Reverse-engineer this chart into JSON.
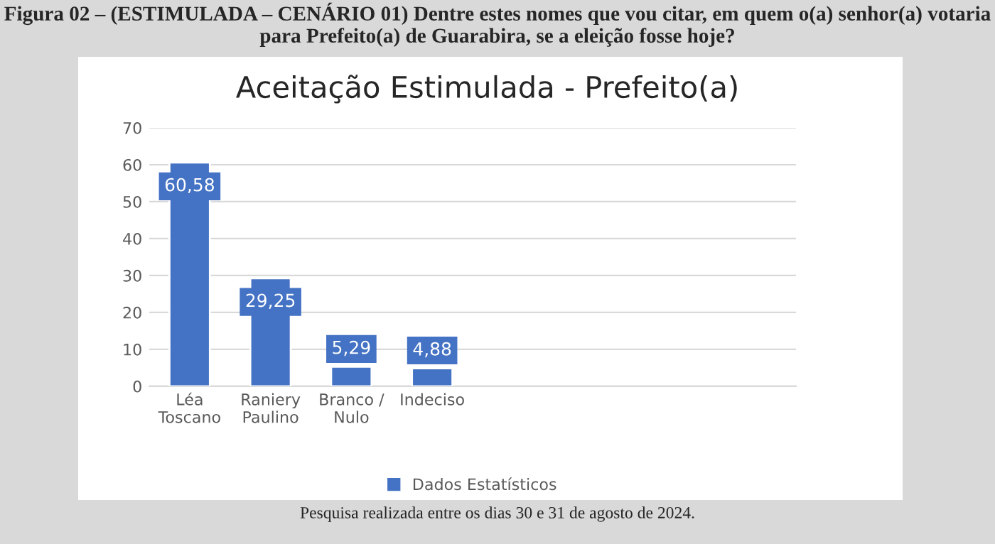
{
  "chart_data": {
    "type": "bar",
    "title": "Aceitação Estimulada - Prefeito(a)",
    "annotations": [
      "Figura 02 – (ESTIMULADA – CENÁRIO 01) Dentre estes nomes que vou citar, em quem o(a) senhor(a) votaria para Prefeito(a) de Guarabira, se a eleição fosse hoje?",
      "Pesquisa realizada entre os dias 30 e 31 de agosto de 2024."
    ],
    "categories": [
      "Léa\nToscano",
      "Raniery\nPaulino",
      "Branco /\nNulo",
      "Indeciso",
      null,
      null,
      null,
      null
    ],
    "series": [
      {
        "name": "Dados Estatísticos",
        "color": "#4472c4",
        "values": [
          60.58,
          29.25,
          5.29,
          4.88,
          null,
          null,
          null,
          null
        ],
        "value_labels": [
          "60,58",
          "29,25",
          "5,29",
          "4,88",
          null,
          null,
          null,
          null
        ]
      }
    ],
    "ylim": [
      0,
      70
    ],
    "yticks": [
      0,
      10,
      20,
      30,
      40,
      50,
      60,
      70
    ],
    "grid": "y",
    "legend": "bottom"
  }
}
